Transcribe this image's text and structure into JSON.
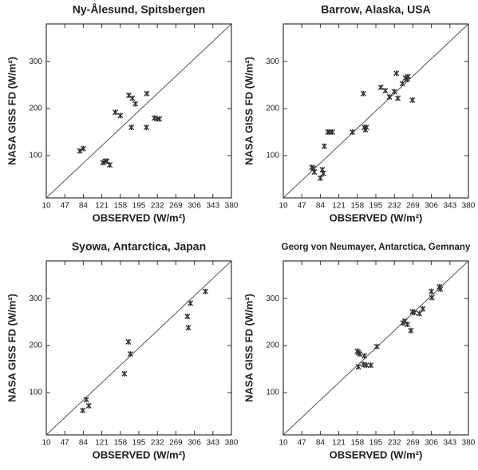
{
  "chart_data": [
    {
      "type": "scatter",
      "title": "Ny-Ålesund, Spitsbergen",
      "x_label": "OBSERVED (W/m²)",
      "y_label": "NASA GISS FD (W/m²)",
      "xlim": [
        10,
        380
      ],
      "ylim": [
        10,
        380
      ],
      "xticks": [
        10,
        47,
        84,
        121,
        158,
        195,
        232,
        269,
        306,
        343,
        380
      ],
      "yticks": [
        100,
        200,
        300
      ],
      "color": "#333333",
      "x": [
        77,
        84,
        123,
        128,
        131,
        137,
        148,
        158,
        175,
        180,
        182,
        188,
        211,
        210,
        226,
        232,
        236
      ],
      "values": [
        110,
        115,
        85,
        88,
        88,
        80,
        192,
        185,
        228,
        160,
        222,
        210,
        232,
        160,
        180,
        178,
        178
      ]
    },
    {
      "type": "scatter",
      "title": "Barrow, Alaska, USA",
      "x_label": "OBSERVED (W/m²)",
      "y_label": "NASA GISS FD (W/m²)",
      "xlim": [
        10,
        380
      ],
      "ylim": [
        10,
        380
      ],
      "xticks": [
        10,
        47,
        84,
        121,
        158,
        195,
        232,
        269,
        306,
        343,
        380
      ],
      "yticks": [
        100,
        200,
        300
      ],
      "color": "#333333",
      "x": [
        67,
        70,
        72,
        84,
        88,
        90,
        92,
        99,
        103,
        108,
        148,
        170,
        172,
        174,
        176,
        205,
        214,
        222,
        232,
        236,
        239,
        248,
        254,
        258,
        259,
        268
      ],
      "values": [
        75,
        73,
        65,
        52,
        70,
        62,
        120,
        150,
        150,
        150,
        150,
        232,
        160,
        155,
        160,
        245,
        238,
        225,
        236,
        275,
        222,
        253,
        265,
        262,
        268,
        218
      ]
    },
    {
      "type": "scatter",
      "title": "Syowa, Antarctica, Japan",
      "x_label": "OBSERVED (W/m²)",
      "y_label": "NASA GISS FD (W/m²)",
      "xlim": [
        10,
        380
      ],
      "ylim": [
        10,
        380
      ],
      "xticks": [
        10,
        47,
        84,
        121,
        158,
        195,
        232,
        269,
        306,
        343,
        380
      ],
      "yticks": [
        100,
        200,
        300
      ],
      "color": "#333333",
      "x": [
        83,
        90,
        95,
        166,
        174,
        178,
        292,
        294,
        298,
        328
      ],
      "values": [
        62,
        85,
        72,
        140,
        208,
        182,
        262,
        238,
        290,
        315
      ]
    },
    {
      "type": "scatter",
      "title": "Georg von Neumayer, Antarctica, Gemnany",
      "x_label": "OBSERVED (W/m²)",
      "y_label": "NASA GISS FD (W/m²)",
      "xlim": [
        10,
        380
      ],
      "ylim": [
        10,
        380
      ],
      "xticks": [
        10,
        47,
        84,
        121,
        158,
        195,
        232,
        269,
        306,
        343,
        380
      ],
      "yticks": [
        100,
        200,
        300
      ],
      "color": "#333333",
      "x": [
        158,
        160,
        163,
        160,
        170,
        172,
        176,
        185,
        197,
        249,
        253,
        258,
        265,
        268,
        272,
        282,
        289,
        306,
        307,
        322,
        324
      ],
      "values": [
        188,
        185,
        182,
        155,
        160,
        178,
        158,
        158,
        198,
        248,
        252,
        245,
        232,
        272,
        270,
        268,
        278,
        315,
        302,
        325,
        320
      ]
    }
  ]
}
